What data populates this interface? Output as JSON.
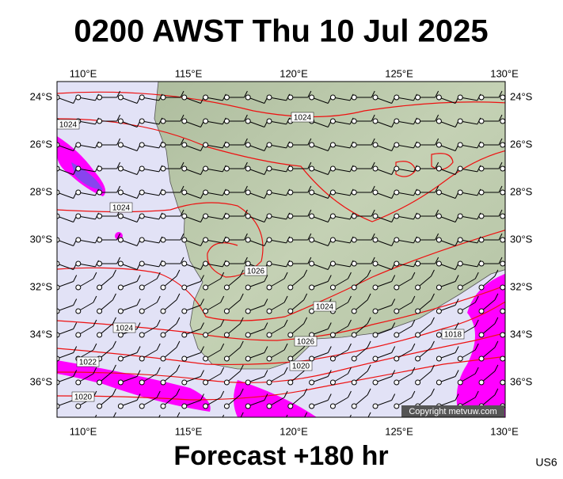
{
  "header": {
    "title": "0200 AWST Thu 10 Jul 2025"
  },
  "map": {
    "lon_labels": [
      "110°E",
      "115°E",
      "120°E",
      "125°E",
      "130°E"
    ],
    "lat_labels": [
      "24°S",
      "26°S",
      "28°S",
      "30°S",
      "32°S",
      "34°S",
      "36°S"
    ],
    "isobar_labels": [
      "1024",
      "1024",
      "1024",
      "1026",
      "1024",
      "1024",
      "1026",
      "1020",
      "1022",
      "1020",
      "1018"
    ],
    "copyright": "Copyright metvuw.com"
  },
  "footer": {
    "forecast": "Forecast +180 hr",
    "model": "US6"
  }
}
